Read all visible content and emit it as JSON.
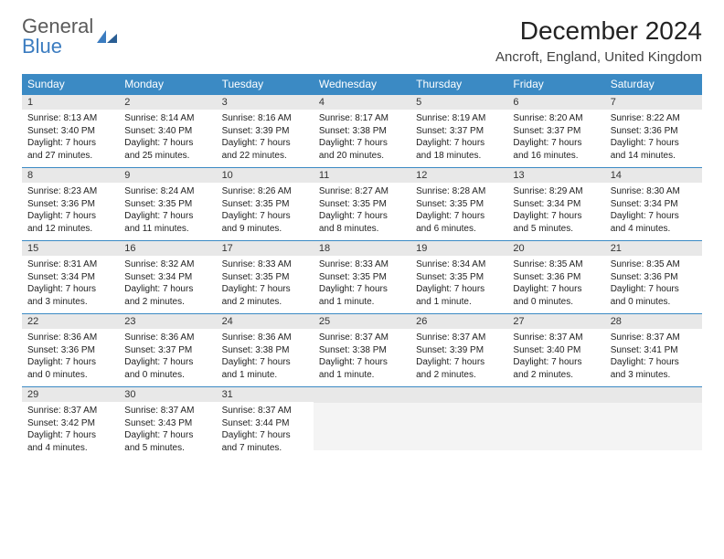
{
  "logo": {
    "line1": "General",
    "line2": "Blue"
  },
  "title": "December 2024",
  "location": "Ancroft, England, United Kingdom",
  "colors": {
    "header_bg": "#3b8ac4",
    "header_text": "#ffffff",
    "daynum_bg": "#e8e8e8",
    "row_border": "#3b8ac4",
    "logo_gray": "#5a5a5a",
    "logo_blue": "#3b7cc0"
  },
  "weekdays": [
    "Sunday",
    "Monday",
    "Tuesday",
    "Wednesday",
    "Thursday",
    "Friday",
    "Saturday"
  ],
  "weeks": [
    [
      {
        "n": "1",
        "sr": "Sunrise: 8:13 AM",
        "ss": "Sunset: 3:40 PM",
        "d1": "Daylight: 7 hours",
        "d2": "and 27 minutes."
      },
      {
        "n": "2",
        "sr": "Sunrise: 8:14 AM",
        "ss": "Sunset: 3:40 PM",
        "d1": "Daylight: 7 hours",
        "d2": "and 25 minutes."
      },
      {
        "n": "3",
        "sr": "Sunrise: 8:16 AM",
        "ss": "Sunset: 3:39 PM",
        "d1": "Daylight: 7 hours",
        "d2": "and 22 minutes."
      },
      {
        "n": "4",
        "sr": "Sunrise: 8:17 AM",
        "ss": "Sunset: 3:38 PM",
        "d1": "Daylight: 7 hours",
        "d2": "and 20 minutes."
      },
      {
        "n": "5",
        "sr": "Sunrise: 8:19 AM",
        "ss": "Sunset: 3:37 PM",
        "d1": "Daylight: 7 hours",
        "d2": "and 18 minutes."
      },
      {
        "n": "6",
        "sr": "Sunrise: 8:20 AM",
        "ss": "Sunset: 3:37 PM",
        "d1": "Daylight: 7 hours",
        "d2": "and 16 minutes."
      },
      {
        "n": "7",
        "sr": "Sunrise: 8:22 AM",
        "ss": "Sunset: 3:36 PM",
        "d1": "Daylight: 7 hours",
        "d2": "and 14 minutes."
      }
    ],
    [
      {
        "n": "8",
        "sr": "Sunrise: 8:23 AM",
        "ss": "Sunset: 3:36 PM",
        "d1": "Daylight: 7 hours",
        "d2": "and 12 minutes."
      },
      {
        "n": "9",
        "sr": "Sunrise: 8:24 AM",
        "ss": "Sunset: 3:35 PM",
        "d1": "Daylight: 7 hours",
        "d2": "and 11 minutes."
      },
      {
        "n": "10",
        "sr": "Sunrise: 8:26 AM",
        "ss": "Sunset: 3:35 PM",
        "d1": "Daylight: 7 hours",
        "d2": "and 9 minutes."
      },
      {
        "n": "11",
        "sr": "Sunrise: 8:27 AM",
        "ss": "Sunset: 3:35 PM",
        "d1": "Daylight: 7 hours",
        "d2": "and 8 minutes."
      },
      {
        "n": "12",
        "sr": "Sunrise: 8:28 AM",
        "ss": "Sunset: 3:35 PM",
        "d1": "Daylight: 7 hours",
        "d2": "and 6 minutes."
      },
      {
        "n": "13",
        "sr": "Sunrise: 8:29 AM",
        "ss": "Sunset: 3:34 PM",
        "d1": "Daylight: 7 hours",
        "d2": "and 5 minutes."
      },
      {
        "n": "14",
        "sr": "Sunrise: 8:30 AM",
        "ss": "Sunset: 3:34 PM",
        "d1": "Daylight: 7 hours",
        "d2": "and 4 minutes."
      }
    ],
    [
      {
        "n": "15",
        "sr": "Sunrise: 8:31 AM",
        "ss": "Sunset: 3:34 PM",
        "d1": "Daylight: 7 hours",
        "d2": "and 3 minutes."
      },
      {
        "n": "16",
        "sr": "Sunrise: 8:32 AM",
        "ss": "Sunset: 3:34 PM",
        "d1": "Daylight: 7 hours",
        "d2": "and 2 minutes."
      },
      {
        "n": "17",
        "sr": "Sunrise: 8:33 AM",
        "ss": "Sunset: 3:35 PM",
        "d1": "Daylight: 7 hours",
        "d2": "and 2 minutes."
      },
      {
        "n": "18",
        "sr": "Sunrise: 8:33 AM",
        "ss": "Sunset: 3:35 PM",
        "d1": "Daylight: 7 hours",
        "d2": "and 1 minute."
      },
      {
        "n": "19",
        "sr": "Sunrise: 8:34 AM",
        "ss": "Sunset: 3:35 PM",
        "d1": "Daylight: 7 hours",
        "d2": "and 1 minute."
      },
      {
        "n": "20",
        "sr": "Sunrise: 8:35 AM",
        "ss": "Sunset: 3:36 PM",
        "d1": "Daylight: 7 hours",
        "d2": "and 0 minutes."
      },
      {
        "n": "21",
        "sr": "Sunrise: 8:35 AM",
        "ss": "Sunset: 3:36 PM",
        "d1": "Daylight: 7 hours",
        "d2": "and 0 minutes."
      }
    ],
    [
      {
        "n": "22",
        "sr": "Sunrise: 8:36 AM",
        "ss": "Sunset: 3:36 PM",
        "d1": "Daylight: 7 hours",
        "d2": "and 0 minutes."
      },
      {
        "n": "23",
        "sr": "Sunrise: 8:36 AM",
        "ss": "Sunset: 3:37 PM",
        "d1": "Daylight: 7 hours",
        "d2": "and 0 minutes."
      },
      {
        "n": "24",
        "sr": "Sunrise: 8:36 AM",
        "ss": "Sunset: 3:38 PM",
        "d1": "Daylight: 7 hours",
        "d2": "and 1 minute."
      },
      {
        "n": "25",
        "sr": "Sunrise: 8:37 AM",
        "ss": "Sunset: 3:38 PM",
        "d1": "Daylight: 7 hours",
        "d2": "and 1 minute."
      },
      {
        "n": "26",
        "sr": "Sunrise: 8:37 AM",
        "ss": "Sunset: 3:39 PM",
        "d1": "Daylight: 7 hours",
        "d2": "and 2 minutes."
      },
      {
        "n": "27",
        "sr": "Sunrise: 8:37 AM",
        "ss": "Sunset: 3:40 PM",
        "d1": "Daylight: 7 hours",
        "d2": "and 2 minutes."
      },
      {
        "n": "28",
        "sr": "Sunrise: 8:37 AM",
        "ss": "Sunset: 3:41 PM",
        "d1": "Daylight: 7 hours",
        "d2": "and 3 minutes."
      }
    ],
    [
      {
        "n": "29",
        "sr": "Sunrise: 8:37 AM",
        "ss": "Sunset: 3:42 PM",
        "d1": "Daylight: 7 hours",
        "d2": "and 4 minutes."
      },
      {
        "n": "30",
        "sr": "Sunrise: 8:37 AM",
        "ss": "Sunset: 3:43 PM",
        "d1": "Daylight: 7 hours",
        "d2": "and 5 minutes."
      },
      {
        "n": "31",
        "sr": "Sunrise: 8:37 AM",
        "ss": "Sunset: 3:44 PM",
        "d1": "Daylight: 7 hours",
        "d2": "and 7 minutes."
      },
      null,
      null,
      null,
      null
    ]
  ]
}
